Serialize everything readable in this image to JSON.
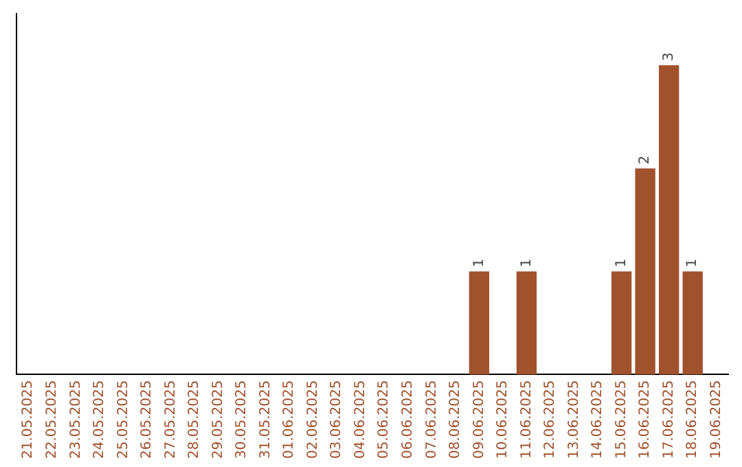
{
  "chart_data": {
    "type": "bar",
    "categories": [
      "21.05.2025",
      "22.05.2025",
      "23.05.2025",
      "24.05.2025",
      "25.05.2025",
      "26.05.2025",
      "27.05.2025",
      "28.05.2025",
      "29.05.2025",
      "30.05.2025",
      "31.05.2025",
      "01.06.2025",
      "02.06.2025",
      "03.06.2025",
      "04.06.2025",
      "05.06.2025",
      "06.06.2025",
      "07.06.2025",
      "08.06.2025",
      "09.06.2025",
      "10.06.2025",
      "11.06.2025",
      "12.06.2025",
      "13.06.2025",
      "14.06.2025",
      "15.06.2025",
      "16.06.2025",
      "17.06.2025",
      "18.06.2025",
      "19.06.2025"
    ],
    "values": [
      null,
      null,
      null,
      null,
      null,
      null,
      null,
      null,
      null,
      null,
      null,
      null,
      null,
      null,
      null,
      null,
      null,
      null,
      null,
      1,
      null,
      1,
      null,
      null,
      null,
      1,
      2,
      3,
      1,
      null
    ],
    "data_labels": true,
    "color": "#a0522d",
    "grid": false,
    "legend": false,
    "tick_labels": "x"
  }
}
